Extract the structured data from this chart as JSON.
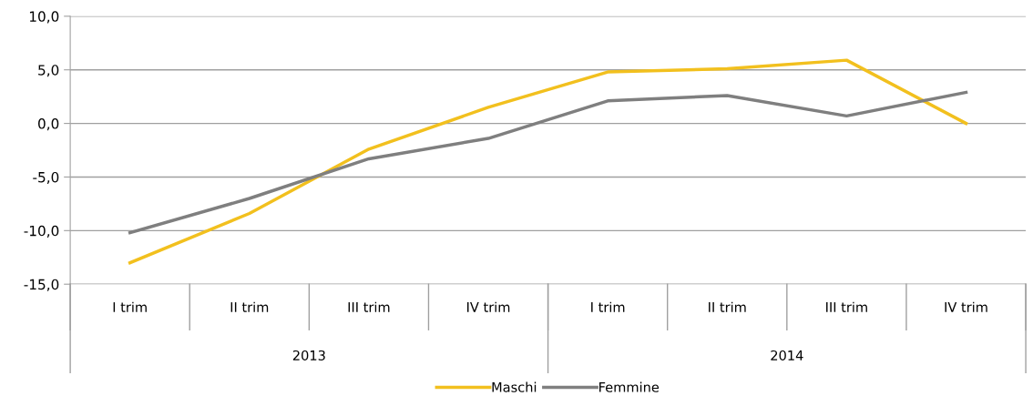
{
  "chart_data": {
    "type": "line",
    "categories": [
      "I trim",
      "II trim",
      "III trim",
      "IV trim",
      "I trim",
      "II trim",
      "III trim",
      "IV trim"
    ],
    "series": [
      {
        "name": "Maschi",
        "color": "#f2c01e",
        "values": [
          -13.0,
          -8.4,
          -2.4,
          1.5,
          4.8,
          5.1,
          5.9,
          0.0
        ]
      },
      {
        "name": "Femmine",
        "color": "#7f7f7f",
        "values": [
          -10.2,
          -7.0,
          -3.3,
          -1.4,
          2.1,
          2.6,
          0.7,
          2.9
        ]
      }
    ],
    "ylim": [
      -15,
      10
    ],
    "yticks": [
      {
        "value": -15,
        "label": "-15,0"
      },
      {
        "value": -10,
        "label": "-10,0"
      },
      {
        "value": -5,
        "label": "-5,0"
      },
      {
        "value": 0,
        "label": "0,0"
      },
      {
        "value": 5,
        "label": "5,0"
      },
      {
        "value": 10,
        "label": "10,0"
      }
    ],
    "annotations": [
      "2013",
      "2014"
    ],
    "grid": "y",
    "legend": "bottom",
    "marker": "none",
    "line_style": "solid"
  }
}
